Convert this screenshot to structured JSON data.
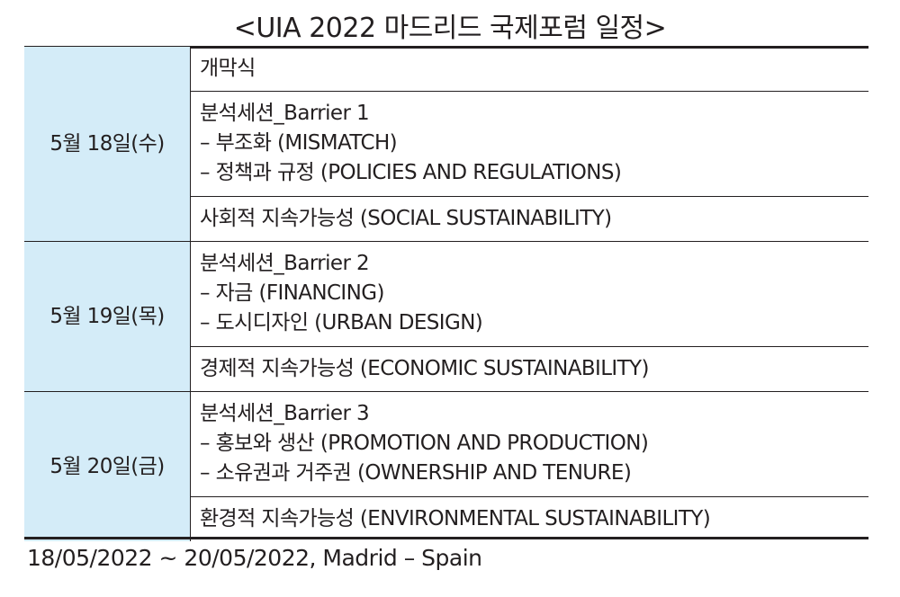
{
  "title": "<UIA 2022 마드리드 국제포럼 일정>",
  "days": [
    {
      "date": "5월 18일(수)",
      "events": [
        {
          "lines": [
            "개막식"
          ]
        },
        {
          "lines": [
            "분석세션_Barrier 1",
            "– 부조화 (MISMATCH)",
            "– 정책과 규정 (POLICIES AND REGULATIONS)"
          ]
        },
        {
          "lines": [
            "사회적 지속가능성 (SOCIAL SUSTAINABILITY)"
          ]
        }
      ]
    },
    {
      "date": "5월 19일(목)",
      "events": [
        {
          "lines": [
            "분석세션_Barrier 2",
            "– 자금 (FINANCING)",
            "– 도시디자인 (URBAN DESIGN)"
          ]
        },
        {
          "lines": [
            "경제적 지속가능성 (ECONOMIC SUSTAINABILITY)"
          ]
        }
      ]
    },
    {
      "date": "5월 20일(금)",
      "events": [
        {
          "lines": [
            "분석세션_Barrier 3",
            "– 홍보와 생산 (PROMOTION AND PRODUCTION)",
            "– 소유권과 거주권 (OWNERSHIP AND TENURE)"
          ]
        },
        {
          "lines": [
            "환경적 지속가능성 (ENVIRONMENTAL SUSTAINABILITY)"
          ]
        }
      ]
    }
  ],
  "footer": "18/05/2022 ~ 20/05/2022, Madrid – Spain",
  "colors": {
    "date_cell_bg": "#d4ecf8",
    "rule": "#231f20",
    "text": "#231f20"
  }
}
